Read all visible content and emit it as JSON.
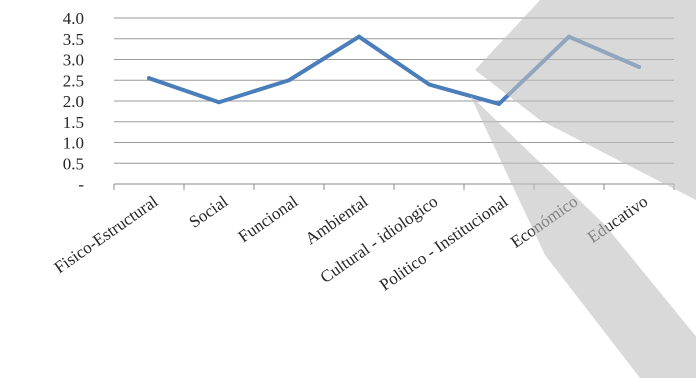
{
  "chart_data": {
    "type": "line",
    "title": "",
    "xlabel": "",
    "ylabel": "",
    "ylim": [
      0,
      4
    ],
    "y_ticks": [
      {
        "value": 4.0,
        "label": "4.0"
      },
      {
        "value": 3.5,
        "label": "3.5"
      },
      {
        "value": 3.0,
        "label": "3.0"
      },
      {
        "value": 2.5,
        "label": "2.5"
      },
      {
        "value": 2.0,
        "label": "2.0"
      },
      {
        "value": 1.5,
        "label": "1.5"
      },
      {
        "value": 1.0,
        "label": "1.0"
      },
      {
        "value": 0.5,
        "label": "0.5"
      },
      {
        "value": 0,
        "label": "-"
      }
    ],
    "categories": [
      "Fisico-Estructural",
      "Social",
      "Funcional",
      "Ambiental",
      "Cultural - idiologico",
      "Politico - Institucional",
      "Económico",
      "Educativo"
    ],
    "series": [
      {
        "values": [
          2.55,
          1.97,
          2.5,
          3.55,
          2.4,
          1.93,
          3.55,
          2.82
        ]
      }
    ],
    "grid": true,
    "legend": "none",
    "colors": {
      "line": "#4a7ebb",
      "grid": "#9a9a9a",
      "axis": "#8a8a8a",
      "text": "#262626",
      "watermark": "#c0c0c0"
    }
  }
}
